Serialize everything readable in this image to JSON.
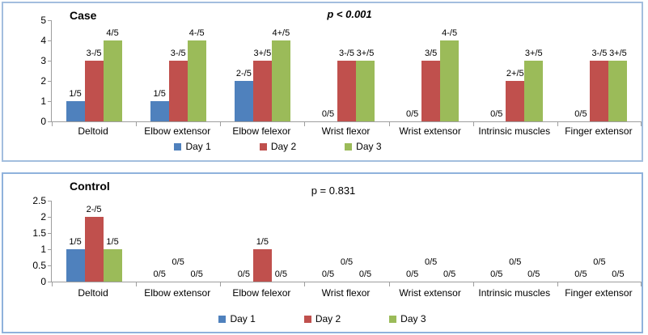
{
  "chart_data": [
    {
      "type": "bar",
      "title": "Case",
      "p_value": "p < 0.001",
      "xlabel": "",
      "ylabel": "",
      "ylim": [
        0,
        5
      ],
      "y_ticks": [
        "0",
        "1",
        "2",
        "3",
        "4",
        "5"
      ],
      "grid": false,
      "legend_position": "bottom",
      "categories": [
        "Deltoid",
        "Elbow extensor",
        "Elbow felexor",
        "Wrist flexor",
        "Wrist extensor",
        "Intrinsic muscles",
        "Finger extensor"
      ],
      "series": [
        {
          "name": "Day 1",
          "color": "#4F81BD",
          "values": [
            1,
            1,
            2,
            0,
            0,
            0,
            0
          ],
          "labels": [
            "1/5",
            "1/5",
            "2-/5",
            "0/5",
            "0/5",
            "0/5",
            "0/5"
          ]
        },
        {
          "name": "Day 2",
          "color": "#C0504D",
          "values": [
            3,
            3,
            3,
            3,
            3,
            2,
            3
          ],
          "labels": [
            "3-/5",
            "3-/5",
            "3+/5",
            "3-/5",
            "3/5",
            "2+/5",
            "3-/5"
          ]
        },
        {
          "name": "Day 3",
          "color": "#9BBB59",
          "values": [
            4,
            4,
            4,
            3,
            4,
            3,
            3
          ],
          "labels": [
            "4/5",
            "4-/5",
            "4+/5",
            "3+/5",
            "4-/5",
            "3+/5",
            "3+/5"
          ]
        }
      ]
    },
    {
      "type": "bar",
      "title": "Control",
      "p_value": "p = 0.831",
      "xlabel": "",
      "ylabel": "",
      "ylim": [
        0,
        2.5
      ],
      "y_ticks": [
        "0",
        "0.5",
        "1",
        "1.5",
        "2",
        "2.5"
      ],
      "grid": false,
      "legend_position": "bottom",
      "categories": [
        "Deltoid",
        "Elbow extensor",
        "Elbow felexor",
        "Wrist flexor",
        "Wrist extensor",
        "Intrinsic muscles",
        "Finger extensor"
      ],
      "series": [
        {
          "name": "Day 1",
          "color": "#4F81BD",
          "values": [
            1,
            0,
            0,
            0,
            0,
            0,
            0
          ],
          "labels": [
            "1/5",
            "0/5",
            "0/5",
            "0/5",
            "0/5",
            "0/5",
            "0/5"
          ]
        },
        {
          "name": "Day 2",
          "color": "#C0504D",
          "values": [
            2,
            0,
            1,
            0,
            0,
            0,
            0
          ],
          "labels": [
            "2-/5",
            "0/5",
            "1/5",
            "0/5",
            "0/5",
            "0/5",
            "0/5"
          ]
        },
        {
          "name": "Day 3",
          "color": "#9BBB59",
          "values": [
            1,
            0,
            0,
            0,
            0,
            0,
            0
          ],
          "labels": [
            "1/5",
            "0/5",
            "0/5",
            "0/5",
            "0/5",
            "0/5",
            "0/5"
          ]
        }
      ]
    }
  ]
}
